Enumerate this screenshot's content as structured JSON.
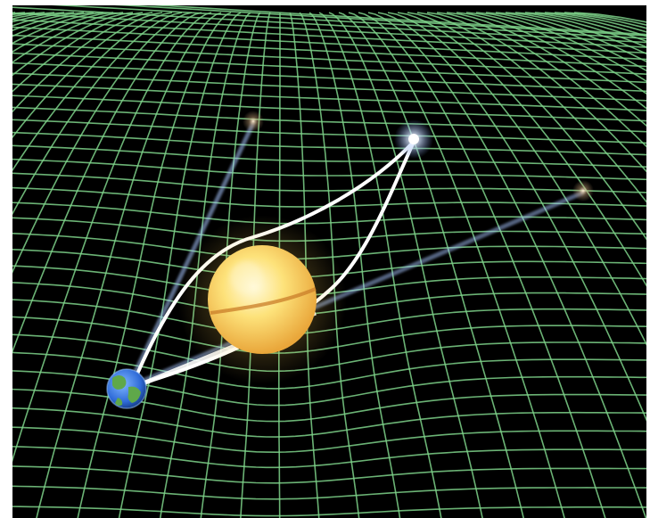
{
  "scene": {
    "background_color": "#000000",
    "frame_color": "#ffffff",
    "grid_color": "#7ed28a",
    "light_path_color": "#ffffff",
    "light_ray_color": "#a8c6ff",
    "sun_core_color": "#fff2a8",
    "sun_edge_color": "#f2b23c",
    "earth_ocean_color": "#2f6bd8",
    "earth_land_color": "#5fa84a",
    "star_color": "#ffffff",
    "icons": [
      "sun-icon",
      "earth-icon",
      "star-icon"
    ]
  }
}
